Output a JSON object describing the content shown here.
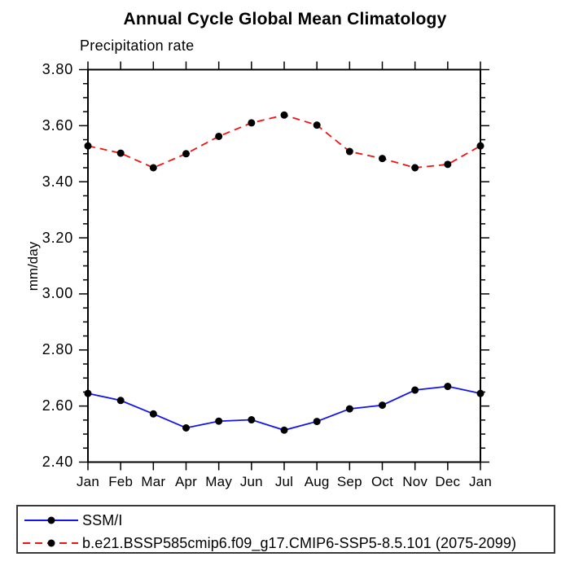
{
  "window": {
    "background": "#ffffff"
  },
  "chart_data": {
    "type": "line",
    "title": "Annual Cycle Global Mean Climatology",
    "subtitle": "Precipitation rate",
    "ylabel": "mm/day",
    "xlabel": "",
    "categories": [
      "Jan",
      "Feb",
      "Mar",
      "Apr",
      "May",
      "Jun",
      "Jul",
      "Aug",
      "Sep",
      "Oct",
      "Nov",
      "Dec",
      "Jan"
    ],
    "ylim": [
      2.4,
      3.8
    ],
    "ytick_major": 0.2,
    "ytick_minor": 0.05,
    "ytick_labels": [
      "2.40",
      "2.60",
      "2.80",
      "3.00",
      "3.20",
      "3.40",
      "3.60",
      "3.80"
    ],
    "grid": false,
    "legend_position": "bottom-left-box",
    "axis_color": "#000000",
    "series": [
      {
        "name": "SSM/I",
        "color": "#1414ee",
        "line_style": "solid",
        "marker": "filled-circle",
        "marker_color": "#000000",
        "values": [
          2.645,
          2.62,
          2.572,
          2.522,
          2.546,
          2.551,
          2.514,
          2.545,
          2.59,
          2.603,
          2.657,
          2.67,
          2.645
        ]
      },
      {
        "name": "b.e21.BSSP585cmip6.f09_g17.CMIP6-SSP5-8.5.101 (2075-2099)",
        "color": "#f31111",
        "line_style": "dashed",
        "marker": "filled-circle",
        "marker_color": "#000000",
        "values": [
          3.528,
          3.502,
          3.45,
          3.5,
          3.562,
          3.61,
          3.638,
          3.602,
          3.508,
          3.483,
          3.45,
          3.462,
          3.528
        ]
      }
    ]
  }
}
